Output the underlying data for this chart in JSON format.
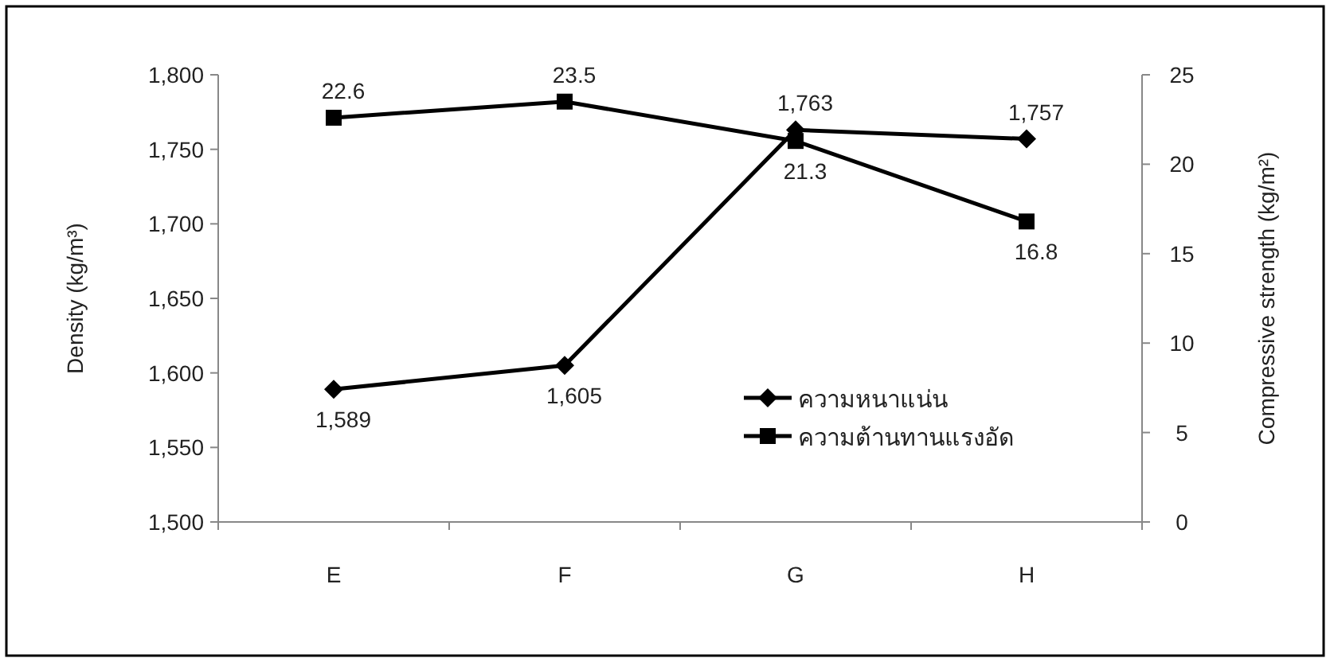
{
  "chart_data": {
    "type": "line",
    "categories": [
      "E",
      "F",
      "G",
      "H"
    ],
    "ylabel": "Density (kg/m³)",
    "y2label": "Compressive strength (kg/m²)",
    "ylim": [
      1500,
      1800
    ],
    "yticks": [
      {
        "value": 1500,
        "label": "1,500"
      },
      {
        "value": 1550,
        "label": "1,550"
      },
      {
        "value": 1600,
        "label": "1,600"
      },
      {
        "value": 1650,
        "label": "1,650"
      },
      {
        "value": 1700,
        "label": "1,700"
      },
      {
        "value": 1750,
        "label": "1,750"
      },
      {
        "value": 1800,
        "label": "1,800"
      }
    ],
    "y2lim": [
      0,
      25
    ],
    "y2ticks": [
      0,
      5,
      10,
      15,
      20,
      25
    ],
    "series": [
      {
        "name": "ความหนาแน่น",
        "color": "#000000",
        "marker": "diamond",
        "values": [
          1589,
          1605,
          1763,
          1757
        ],
        "value_labels": [
          "1,589",
          "1,605",
          "1,763",
          "1,757"
        ]
      },
      {
        "name": "ความต้านทานแรงอัด",
        "color": "#000000",
        "marker": "square",
        "axis": "y2",
        "values": [
          22.6,
          23.5,
          21.3,
          16.8
        ],
        "value_labels": [
          "22.6",
          "23.5",
          "21.3",
          "16.8"
        ]
      }
    ],
    "legend": "bottom right",
    "grid": false,
    "line_style": "solid"
  }
}
